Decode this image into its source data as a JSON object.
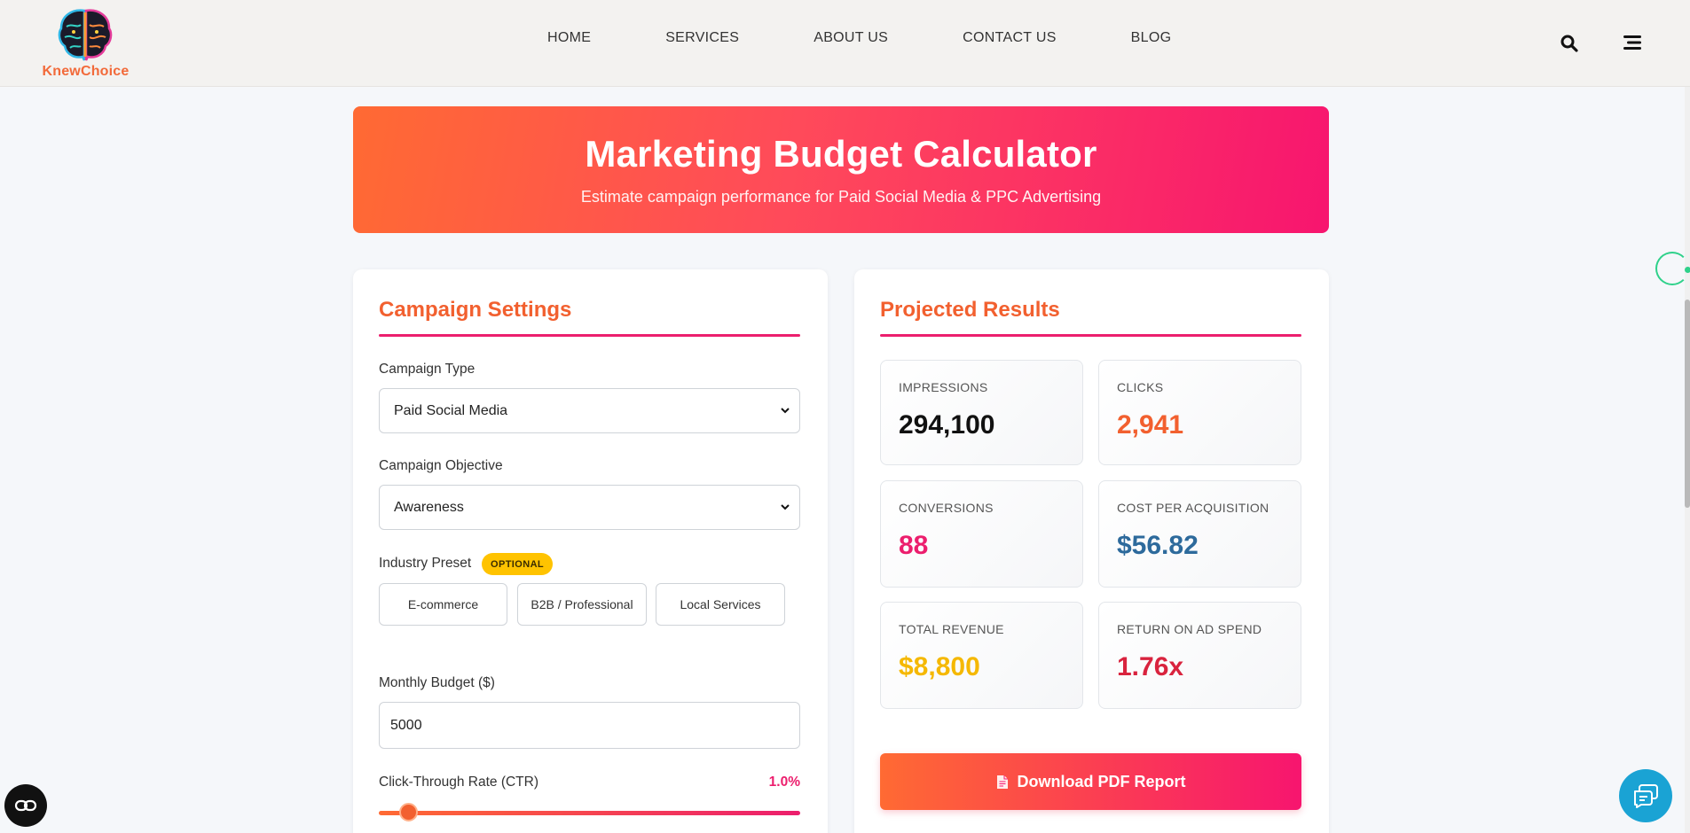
{
  "brand": {
    "name": "KnewChoice"
  },
  "nav": {
    "items": [
      "HOME",
      "SERVICES",
      "ABOUT US",
      "CONTACT US",
      "BLOG"
    ]
  },
  "hero": {
    "title": "Marketing Budget Calculator",
    "subtitle": "Estimate campaign performance for Paid Social Media & PPC Advertising"
  },
  "settings": {
    "title": "Campaign Settings",
    "campaign_type_label": "Campaign Type",
    "campaign_type_value": "Paid Social Media",
    "objective_label": "Campaign Objective",
    "objective_value": "Awareness",
    "preset_label": "Industry Preset",
    "preset_badge": "OPTIONAL",
    "presets": [
      "E-commerce",
      "B2B / Professional",
      "Local Services"
    ],
    "budget_label": "Monthly Budget ($)",
    "budget_value": "5000",
    "ctr_label": "Click-Through Rate (CTR)",
    "ctr_value": "1.0%",
    "ctr_slider_fraction": 0.07
  },
  "results": {
    "title": "Projected Results",
    "cards": [
      {
        "label": "IMPRESSIONS",
        "value": "294,100",
        "color": "#111111"
      },
      {
        "label": "CLICKS",
        "value": "2,941",
        "color": "#f2602f"
      },
      {
        "label": "CONVERSIONS",
        "value": "88",
        "color": "#ec1e6d"
      },
      {
        "label": "COST PER ACQUISITION",
        "value": "$56.82",
        "color": "#2d6a9c"
      },
      {
        "label": "TOTAL REVENUE",
        "value": "$8,800",
        "color": "#f5b800"
      },
      {
        "label": "RETURN ON AD SPEND",
        "value": "1.76x",
        "color": "#d9233e"
      }
    ],
    "download_label": "Download PDF Report"
  },
  "colors": {
    "accent_orange": "#f2602f",
    "accent_pink": "#ec1e6d",
    "chat_blue": "#1aa3d4"
  },
  "icons": [
    "search-icon",
    "menu-icon",
    "chevron-down-icon",
    "document-icon",
    "chat-icon",
    "accessibility-icon"
  ]
}
